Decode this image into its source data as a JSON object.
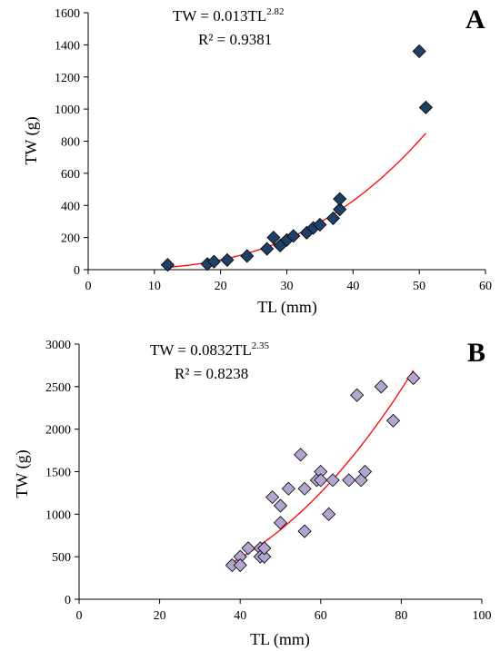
{
  "chart_data": [
    {
      "type": "scatter",
      "panel_label": "A",
      "xlabel": "TL  (mm)",
      "ylabel": "TW  (g)",
      "xlim": [
        0,
        60
      ],
      "ylim": [
        0,
        1600
      ],
      "xticks": [
        0,
        10,
        20,
        30,
        40,
        50,
        60
      ],
      "yticks": [
        0,
        200,
        400,
        600,
        800,
        1000,
        1200,
        1400,
        1600
      ],
      "equation": {
        "base": "TW = 0.013TL",
        "exponent": "2.82"
      },
      "r2": "R² = 0.9381",
      "fit": {
        "a": 0.013,
        "b": 2.82,
        "x_range": [
          12,
          51
        ]
      },
      "marker_color": "#1f3f66",
      "fit_color": "#ff0000",
      "points": [
        [
          12,
          30
        ],
        [
          18,
          35
        ],
        [
          19,
          50
        ],
        [
          21,
          60
        ],
        [
          24,
          85
        ],
        [
          27,
          130
        ],
        [
          28,
          200
        ],
        [
          29,
          150
        ],
        [
          30,
          185
        ],
        [
          31,
          210
        ],
        [
          33,
          230
        ],
        [
          34,
          260
        ],
        [
          35,
          280
        ],
        [
          37,
          320
        ],
        [
          38,
          375
        ],
        [
          38,
          440
        ],
        [
          50,
          1360
        ],
        [
          51,
          1010
        ]
      ]
    },
    {
      "type": "scatter",
      "panel_label": "B",
      "xlabel": "TL  (mm)",
      "ylabel": "TW  (g)",
      "xlim": [
        0,
        100
      ],
      "ylim": [
        0,
        3000
      ],
      "xticks": [
        0,
        20,
        40,
        60,
        80,
        100
      ],
      "yticks": [
        0,
        500,
        1000,
        1500,
        2000,
        2500,
        3000
      ],
      "equation": {
        "base": "TW = 0.0832TL",
        "exponent": "2.35"
      },
      "r2": "R² = 0.8238",
      "fit": {
        "a": 0.0832,
        "b": 2.35,
        "x_range": [
          38,
          83
        ]
      },
      "marker_color": "#b4a5d0",
      "fit_color": "#ff0000",
      "points": [
        [
          38,
          400
        ],
        [
          40,
          500
        ],
        [
          40,
          400
        ],
        [
          42,
          600
        ],
        [
          45,
          600
        ],
        [
          45,
          500
        ],
        [
          46,
          500
        ],
        [
          46,
          600
        ],
        [
          48,
          1200
        ],
        [
          50,
          1100
        ],
        [
          50,
          900
        ],
        [
          52,
          1300
        ],
        [
          55,
          1700
        ],
        [
          56,
          1300
        ],
        [
          56,
          800
        ],
        [
          59,
          1400
        ],
        [
          60,
          1500
        ],
        [
          60,
          1400
        ],
        [
          62,
          1000
        ],
        [
          63,
          1400
        ],
        [
          67,
          1400
        ],
        [
          69,
          2400
        ],
        [
          70,
          1400
        ],
        [
          71,
          1500
        ],
        [
          75,
          2500
        ],
        [
          78,
          2100
        ],
        [
          83,
          2600
        ]
      ]
    }
  ]
}
